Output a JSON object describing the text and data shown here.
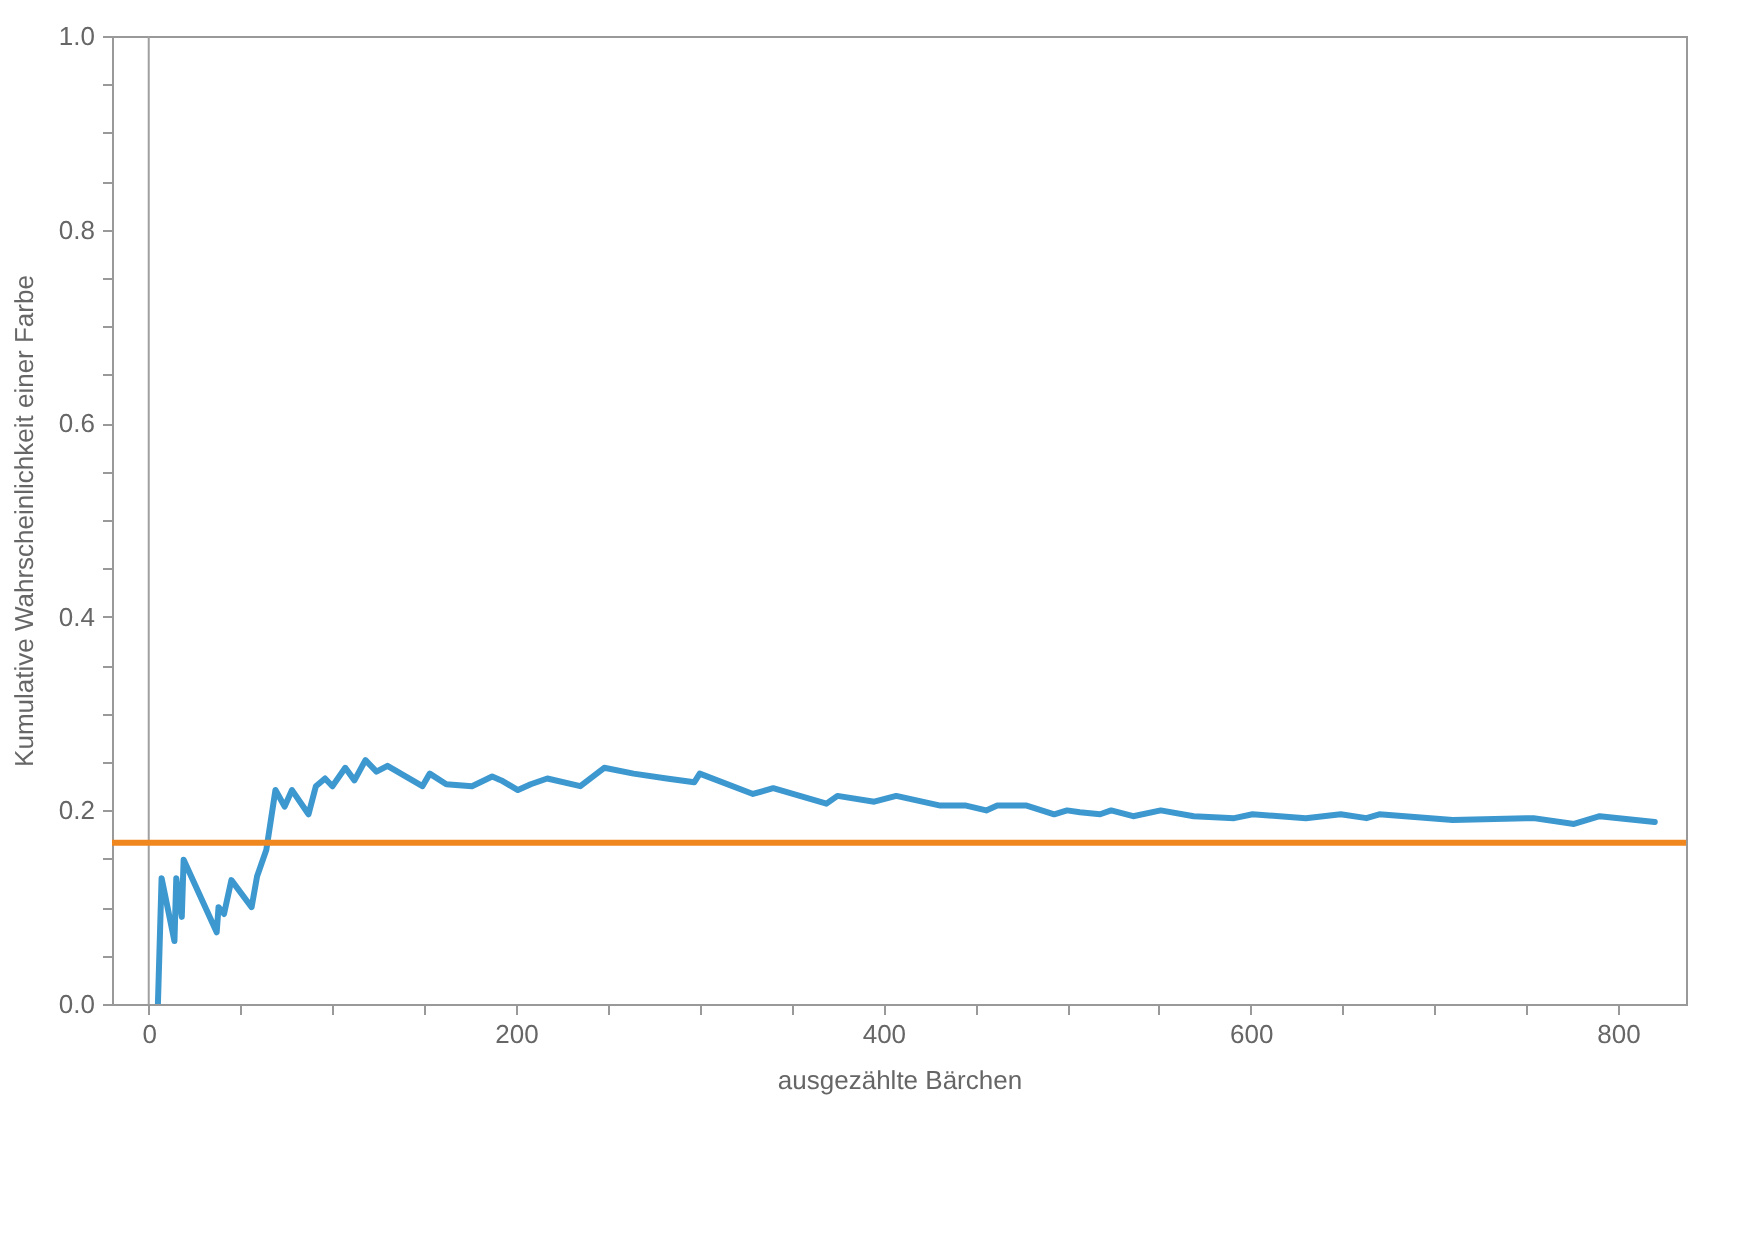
{
  "chart_data": {
    "type": "line",
    "xlabel": "ausgezählte Bärchen",
    "ylabel": "Kumulative Wahrscheinlichkeit einer Farbe",
    "xlim": [
      -20,
      837
    ],
    "ylim": [
      0,
      1
    ],
    "xticks": [
      0,
      {
        "value": 50,
        "label": null
      },
      {
        "value": 100,
        "label": null
      },
      {
        "value": 150,
        "label": null
      },
      200,
      {
        "value": 250,
        "label": null
      },
      {
        "value": 300,
        "label": null
      },
      {
        "value": 350,
        "label": null
      },
      400,
      {
        "value": 450,
        "label": null
      },
      {
        "value": 500,
        "label": null
      },
      {
        "value": 550,
        "label": null
      },
      600,
      {
        "value": 650,
        "label": null
      },
      {
        "value": 700,
        "label": null
      },
      {
        "value": 750,
        "label": null
      },
      800
    ],
    "yticks": [
      {
        "value": 0,
        "label": "0.0"
      },
      {
        "value": 0.05,
        "label": null
      },
      {
        "value": 0.1,
        "label": null
      },
      {
        "value": 0.15,
        "label": null
      },
      0.2,
      {
        "value": 0.25,
        "label": null
      },
      {
        "value": 0.3,
        "label": null
      },
      {
        "value": 0.35,
        "label": null
      },
      0.4,
      {
        "value": 0.45,
        "label": null
      },
      {
        "value": 0.5,
        "label": null
      },
      {
        "value": 0.55,
        "label": null
      },
      0.6,
      {
        "value": 0.65,
        "label": null
      },
      {
        "value": 0.7,
        "label": null
      },
      {
        "value": 0.75,
        "label": null
      },
      0.8,
      {
        "value": 0.85,
        "label": null
      },
      {
        "value": 0.9,
        "label": null
      },
      {
        "value": 0.95,
        "label": null
      },
      {
        "value": 1,
        "label": "1.0"
      }
    ],
    "ref_lines": [
      {
        "axis": "x",
        "value": 0,
        "color": "#a0a0a0"
      },
      {
        "axis": "y",
        "value": 0.1667,
        "color": "#f0861e"
      }
    ],
    "series": [
      {
        "color": "#3d98d0",
        "x": [
          5,
          7,
          14,
          15,
          18,
          19,
          37,
          38,
          41,
          45,
          56,
          59,
          64,
          69,
          74,
          78,
          87,
          91,
          96,
          100,
          107,
          112,
          118,
          124,
          130,
          149,
          153,
          162,
          176,
          187,
          192,
          201,
          208,
          217,
          235,
          248,
          264,
          282,
          297,
          300,
          329,
          340,
          369,
          375,
          395,
          407,
          431,
          445,
          456,
          462,
          478,
          493,
          500,
          507,
          518,
          524,
          536,
          551,
          569,
          591,
          601,
          630,
          649,
          663,
          670,
          710,
          754,
          776,
          790,
          820
        ],
        "values": [
          0,
          0.13,
          0.065,
          0.13,
          0.09,
          0.149,
          0.074,
          0.1,
          0.093,
          0.128,
          0.1,
          0.132,
          0.159,
          0.221,
          0.204,
          0.221,
          0.196,
          0.225,
          0.233,
          0.225,
          0.244,
          0.231,
          0.252,
          0.24,
          0.246,
          0.225,
          0.238,
          0.227,
          0.225,
          0.235,
          0.231,
          0.221,
          0.227,
          0.233,
          0.225,
          0.244,
          0.238,
          0.233,
          0.229,
          0.238,
          0.217,
          0.223,
          0.207,
          0.215,
          0.209,
          0.215,
          0.205,
          0.205,
          0.2,
          0.205,
          0.205,
          0.196,
          0.2,
          0.198,
          0.196,
          0.2,
          0.194,
          0.2,
          0.194,
          0.192,
          0.196,
          0.192,
          0.196,
          0.192,
          0.196,
          0.19,
          0.192,
          0.186,
          0.194,
          0.188
        ]
      }
    ]
  }
}
